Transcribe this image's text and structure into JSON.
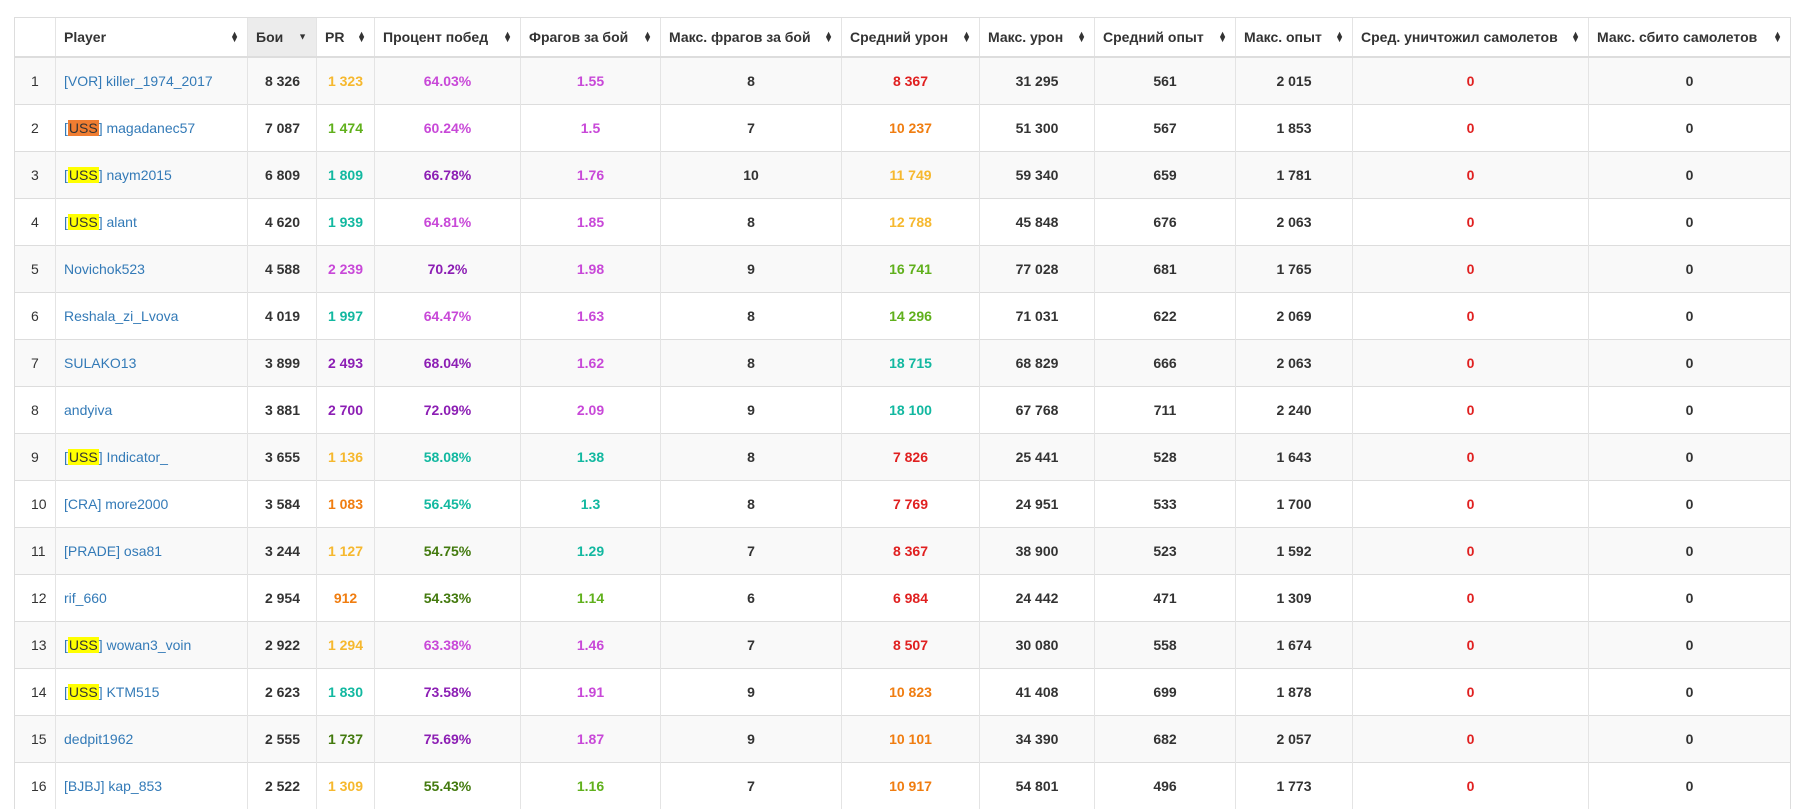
{
  "colors": {
    "link": "#337ab7",
    "red": "#e02020",
    "orange": "#f07d10",
    "yellow": "#f6b82e",
    "green": "#60b01c",
    "dark_green": "#437a0e",
    "teal": "#12b8a0",
    "pink": "#c848d8",
    "purple": "#8c1eb4",
    "clan_yellow": "#ffff00",
    "clan_orange": "#f07d31"
  },
  "table": {
    "headers": {
      "num": "",
      "player": "Player",
      "battles": "Бои",
      "pr": "PR",
      "winrate": "Процент побед",
      "frags": "Фрагов за бой",
      "max_frags": "Макс. фрагов за бой",
      "avg_damage": "Средний урон",
      "max_damage": "Макс. урон",
      "avg_exp": "Средний опыт",
      "max_exp": "Макс. опыт",
      "avg_planes": "Сред. уничтожил самолетов",
      "max_planes": "Макс. сбито самолетов"
    },
    "sorted_column": "battles",
    "sort_direction": "descending",
    "rows": [
      {
        "num": "1",
        "clan": "VOR",
        "clan_highlight": null,
        "name": "killer_1974_2017",
        "battles": "8 326",
        "pr": "1 323",
        "pr_color": "yellow",
        "winrate": "64.03%",
        "winrate_color": "pink",
        "frags": "1.55",
        "frags_color": "pink",
        "max_frags": "8",
        "avg_damage": "8 367",
        "avg_damage_color": "red",
        "max_damage": "31 295",
        "avg_exp": "561",
        "max_exp": "2 015",
        "avg_planes": "0",
        "max_planes": "0"
      },
      {
        "num": "2",
        "clan": "USS",
        "clan_highlight": "clan_orange",
        "name": "magadanec57",
        "battles": "7 087",
        "pr": "1 474",
        "pr_color": "green",
        "winrate": "60.24%",
        "winrate_color": "pink",
        "frags": "1.5",
        "frags_color": "pink",
        "max_frags": "7",
        "avg_damage": "10 237",
        "avg_damage_color": "orange",
        "max_damage": "51 300",
        "avg_exp": "567",
        "max_exp": "1 853",
        "avg_planes": "0",
        "max_planes": "0"
      },
      {
        "num": "3",
        "clan": "USS",
        "clan_highlight": "clan_yellow",
        "name": "naym2015",
        "battles": "6 809",
        "pr": "1 809",
        "pr_color": "teal",
        "winrate": "66.78%",
        "winrate_color": "purple",
        "frags": "1.76",
        "frags_color": "pink",
        "max_frags": "10",
        "avg_damage": "11 749",
        "avg_damage_color": "yellow",
        "max_damage": "59 340",
        "avg_exp": "659",
        "max_exp": "1 781",
        "avg_planes": "0",
        "max_planes": "0"
      },
      {
        "num": "4",
        "clan": "USS",
        "clan_highlight": "clan_yellow",
        "name": "alant",
        "battles": "4 620",
        "pr": "1 939",
        "pr_color": "teal",
        "winrate": "64.81%",
        "winrate_color": "pink",
        "frags": "1.85",
        "frags_color": "pink",
        "max_frags": "8",
        "avg_damage": "12 788",
        "avg_damage_color": "yellow",
        "max_damage": "45 848",
        "avg_exp": "676",
        "max_exp": "2 063",
        "avg_planes": "0",
        "max_planes": "0"
      },
      {
        "num": "5",
        "clan": null,
        "clan_highlight": null,
        "name": "Novichok523",
        "battles": "4 588",
        "pr": "2 239",
        "pr_color": "pink",
        "winrate": "70.2%",
        "winrate_color": "purple",
        "frags": "1.98",
        "frags_color": "pink",
        "max_frags": "9",
        "avg_damage": "16 741",
        "avg_damage_color": "green",
        "max_damage": "77 028",
        "avg_exp": "681",
        "max_exp": "1 765",
        "avg_planes": "0",
        "max_planes": "0"
      },
      {
        "num": "6",
        "clan": null,
        "clan_highlight": null,
        "name": "Reshala_zi_Lvova",
        "battles": "4 019",
        "pr": "1 997",
        "pr_color": "teal",
        "winrate": "64.47%",
        "winrate_color": "pink",
        "frags": "1.63",
        "frags_color": "pink",
        "max_frags": "8",
        "avg_damage": "14 296",
        "avg_damage_color": "green",
        "max_damage": "71 031",
        "avg_exp": "622",
        "max_exp": "2 069",
        "avg_planes": "0",
        "max_planes": "0"
      },
      {
        "num": "7",
        "clan": null,
        "clan_highlight": null,
        "name": "SULAKO13",
        "battles": "3 899",
        "pr": "2 493",
        "pr_color": "purple",
        "winrate": "68.04%",
        "winrate_color": "purple",
        "frags": "1.62",
        "frags_color": "pink",
        "max_frags": "8",
        "avg_damage": "18 715",
        "avg_damage_color": "teal",
        "max_damage": "68 829",
        "avg_exp": "666",
        "max_exp": "2 063",
        "avg_planes": "0",
        "max_planes": "0"
      },
      {
        "num": "8",
        "clan": null,
        "clan_highlight": null,
        "name": "andyiva",
        "battles": "3 881",
        "pr": "2 700",
        "pr_color": "purple",
        "winrate": "72.09%",
        "winrate_color": "purple",
        "frags": "2.09",
        "frags_color": "pink",
        "max_frags": "9",
        "avg_damage": "18 100",
        "avg_damage_color": "teal",
        "max_damage": "67 768",
        "avg_exp": "711",
        "max_exp": "2 240",
        "avg_planes": "0",
        "max_planes": "0"
      },
      {
        "num": "9",
        "clan": "USS",
        "clan_highlight": "clan_yellow",
        "name": "Indicator_",
        "battles": "3 655",
        "pr": "1 136",
        "pr_color": "yellow",
        "winrate": "58.08%",
        "winrate_color": "teal",
        "frags": "1.38",
        "frags_color": "teal",
        "max_frags": "8",
        "avg_damage": "7 826",
        "avg_damage_color": "red",
        "max_damage": "25 441",
        "avg_exp": "528",
        "max_exp": "1 643",
        "avg_planes": "0",
        "max_planes": "0"
      },
      {
        "num": "10",
        "clan": "CRA",
        "clan_highlight": null,
        "name": "more2000",
        "battles": "3 584",
        "pr": "1 083",
        "pr_color": "orange",
        "winrate": "56.45%",
        "winrate_color": "teal",
        "frags": "1.3",
        "frags_color": "teal",
        "max_frags": "8",
        "avg_damage": "7 769",
        "avg_damage_color": "red",
        "max_damage": "24 951",
        "avg_exp": "533",
        "max_exp": "1 700",
        "avg_planes": "0",
        "max_planes": "0"
      },
      {
        "num": "11",
        "clan": "PRADE",
        "clan_highlight": null,
        "name": "osa81",
        "battles": "3 244",
        "pr": "1 127",
        "pr_color": "yellow",
        "winrate": "54.75%",
        "winrate_color": "dark_green",
        "frags": "1.29",
        "frags_color": "teal",
        "max_frags": "7",
        "avg_damage": "8 367",
        "avg_damage_color": "red",
        "max_damage": "38 900",
        "avg_exp": "523",
        "max_exp": "1 592",
        "avg_planes": "0",
        "max_planes": "0"
      },
      {
        "num": "12",
        "clan": null,
        "clan_highlight": null,
        "name": "rif_660",
        "battles": "2 954",
        "pr": "912",
        "pr_color": "orange",
        "winrate": "54.33%",
        "winrate_color": "dark_green",
        "frags": "1.14",
        "frags_color": "green",
        "max_frags": "6",
        "avg_damage": "6 984",
        "avg_damage_color": "red",
        "max_damage": "24 442",
        "avg_exp": "471",
        "max_exp": "1 309",
        "avg_planes": "0",
        "max_planes": "0"
      },
      {
        "num": "13",
        "clan": "USS",
        "clan_highlight": "clan_yellow",
        "name": "wowan3_voin",
        "battles": "2 922",
        "pr": "1 294",
        "pr_color": "yellow",
        "winrate": "63.38%",
        "winrate_color": "pink",
        "frags": "1.46",
        "frags_color": "pink",
        "max_frags": "7",
        "avg_damage": "8 507",
        "avg_damage_color": "red",
        "max_damage": "30 080",
        "avg_exp": "558",
        "max_exp": "1 674",
        "avg_planes": "0",
        "max_planes": "0"
      },
      {
        "num": "14",
        "clan": "USS",
        "clan_highlight": "clan_yellow",
        "name": "KTM515",
        "battles": "2 623",
        "pr": "1 830",
        "pr_color": "teal",
        "winrate": "73.58%",
        "winrate_color": "purple",
        "frags": "1.91",
        "frags_color": "pink",
        "max_frags": "9",
        "avg_damage": "10 823",
        "avg_damage_color": "orange",
        "max_damage": "41 408",
        "avg_exp": "699",
        "max_exp": "1 878",
        "avg_planes": "0",
        "max_planes": "0"
      },
      {
        "num": "15",
        "clan": null,
        "clan_highlight": null,
        "name": "dedpit1962",
        "battles": "2 555",
        "pr": "1 737",
        "pr_color": "dark_green",
        "winrate": "75.69%",
        "winrate_color": "purple",
        "frags": "1.87",
        "frags_color": "pink",
        "max_frags": "9",
        "avg_damage": "10 101",
        "avg_damage_color": "orange",
        "max_damage": "34 390",
        "avg_exp": "682",
        "max_exp": "2 057",
        "avg_planes": "0",
        "max_planes": "0"
      },
      {
        "num": "16",
        "clan": "BJBJ",
        "clan_highlight": null,
        "name": "kap_853",
        "battles": "2 522",
        "pr": "1 309",
        "pr_color": "yellow",
        "winrate": "55.43%",
        "winrate_color": "dark_green",
        "frags": "1.16",
        "frags_color": "green",
        "max_frags": "7",
        "avg_damage": "10 917",
        "avg_damage_color": "orange",
        "max_damage": "54 801",
        "avg_exp": "496",
        "max_exp": "1 773",
        "avg_planes": "0",
        "max_planes": "0"
      }
    ]
  }
}
